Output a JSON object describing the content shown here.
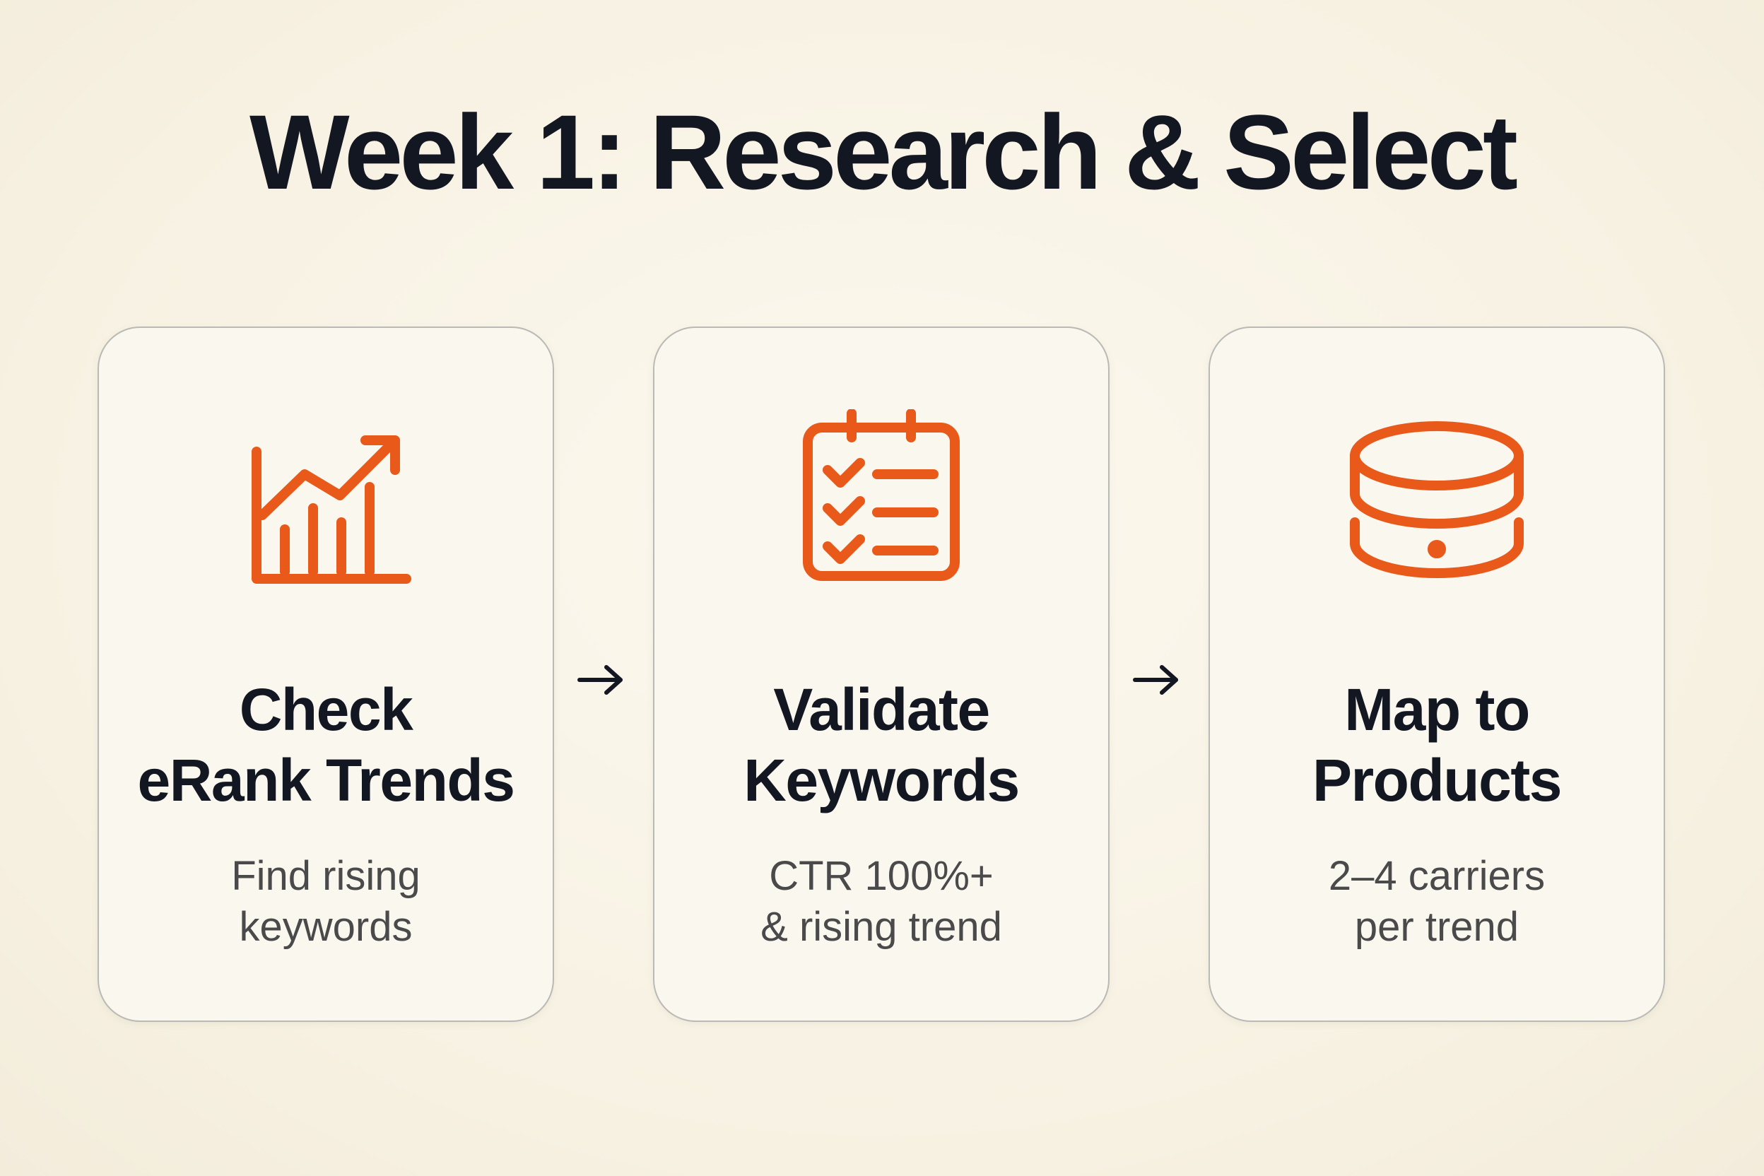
{
  "title": "Week 1: Research & Select",
  "colors": {
    "accent": "#e8591a",
    "text": "#131722",
    "muted": "#4a4a4a",
    "background": "#f8f3e6",
    "card_border": "#b9b9b5"
  },
  "steps": [
    {
      "icon": "trending-chart-icon",
      "title_lines": [
        "Check",
        "eRank Trends"
      ],
      "desc_lines": [
        "Find rising",
        "keywords"
      ]
    },
    {
      "icon": "checklist-calendar-icon",
      "title_lines": [
        "Validate",
        "Keywords"
      ],
      "desc_lines": [
        "CTR 100%+",
        "& rising trend"
      ]
    },
    {
      "icon": "database-icon",
      "title_lines": [
        "Map to",
        "Products"
      ],
      "desc_lines": [
        "2–4 carriers",
        "per trend"
      ]
    }
  ],
  "connectors": [
    "arrow-right-icon",
    "arrow-right-icon"
  ]
}
